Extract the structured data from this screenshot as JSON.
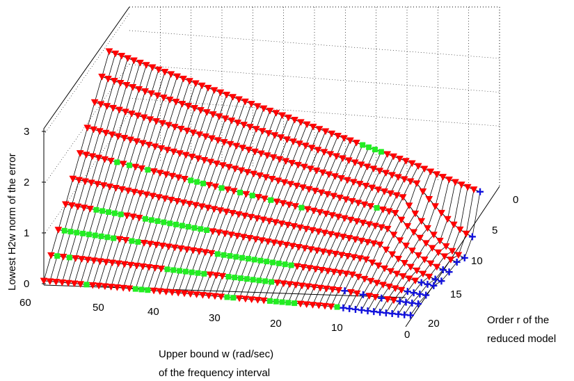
{
  "chart_data": {
    "type": "3d-line-mesh",
    "title": "",
    "xlabel": [
      "Upper bound w (rad/sec)",
      "of the frequency interval"
    ],
    "ylabel": [
      "Order r of the",
      "reduced model"
    ],
    "zlabel": "Lowest H2w norm of the error",
    "x_ticks": [
      "0",
      "10",
      "20",
      "30",
      "40",
      "50",
      "60"
    ],
    "y_ticks": [
      "0",
      "5",
      "10",
      "15",
      "20"
    ],
    "z_ticks": [
      "0",
      "1",
      "2",
      "3"
    ],
    "xlim": [
      0,
      60
    ],
    "ylim": [
      0,
      20
    ],
    "zlim": [
      0,
      3
    ],
    "x_step": 1,
    "grid": true,
    "orders": [
      2,
      4,
      6,
      8,
      10,
      12,
      14,
      16,
      18,
      20
    ],
    "markers": {
      "red": {
        "shape": "triangle-down",
        "color": "#ff0000"
      },
      "green": {
        "shape": "square",
        "color": "#22ee22"
      },
      "blue": {
        "shape": "plus",
        "color": "#1111dd"
      }
    },
    "series": [
      {
        "order": 2,
        "low": 2.95,
        "high": 3.05,
        "knee": 11,
        "mid_w": 0,
        "green_w": [
          [
            16,
            19
          ]
        ],
        "blue_w": [
          0
        ]
      },
      {
        "order": 4,
        "low": 1.75,
        "high": 2.62,
        "knee": 9,
        "mid_w": 0,
        "green_w": [],
        "blue_w": [
          0
        ]
      },
      {
        "order": 6,
        "low": 1.2,
        "high": 2.25,
        "knee": 10,
        "mid_w": 0,
        "green_w": [],
        "blue_w": [
          0
        ]
      },
      {
        "order": 8,
        "low": 0.95,
        "high": 1.76,
        "knee": 10,
        "mid_w": 0,
        "green_w": [
          [
            13,
            13
          ]
        ],
        "blue_w": [
          0
        ]
      },
      {
        "order": 10,
        "low": 0.52,
        "high": 1.23,
        "knee": 10,
        "mid_w": 0,
        "green_w": [
          [
            24,
            24
          ],
          [
            29,
            29
          ],
          [
            32,
            32
          ],
          [
            34,
            34
          ],
          [
            37,
            37
          ],
          [
            40,
            42
          ],
          [
            49,
            49
          ],
          [
            52,
            52
          ],
          [
            54,
            54
          ]
        ],
        "blue_w": [
          0,
          1
        ]
      },
      {
        "order": 12,
        "low": 0.36,
        "high": 0.95,
        "knee": 10,
        "mid_w": 0,
        "green_w": [],
        "blue_w": [
          0,
          1
        ]
      },
      {
        "order": 14,
        "low": 0.26,
        "high": 0.62,
        "knee": 11,
        "mid_w": 0,
        "green_w": [
          [
            37,
            47
          ],
          [
            51,
            55
          ]
        ],
        "blue_w": [
          0,
          1,
          2
        ]
      },
      {
        "order": 16,
        "low": 0.17,
        "high": 0.42,
        "knee": 12,
        "mid_w": 0,
        "green_w": [
          [
            22,
            34
          ],
          [
            47,
            48
          ],
          [
            51,
            59
          ]
        ],
        "blue_w": [
          0,
          1,
          2,
          3
        ]
      },
      {
        "order": 18,
        "low": 0.06,
        "high": 0.18,
        "knee": 12,
        "mid_w": 0,
        "green_w": [
          [
            24,
            31
          ],
          [
            35,
            41
          ],
          [
            57,
            57
          ],
          [
            59,
            59
          ]
        ],
        "blue_w": [
          0,
          1,
          2,
          3,
          6,
          9,
          12
        ]
      },
      {
        "order": 20,
        "low": 0.02,
        "high": 0.08,
        "knee": 12,
        "mid_w": 0,
        "green_w": [
          [
            12,
            12
          ],
          [
            19,
            23
          ],
          [
            29,
            30
          ],
          [
            43,
            45
          ],
          [
            53,
            53
          ]
        ],
        "blue_w": [
          0,
          1,
          2,
          3,
          4,
          5,
          6,
          7,
          8,
          9,
          10,
          11
        ]
      }
    ]
  }
}
